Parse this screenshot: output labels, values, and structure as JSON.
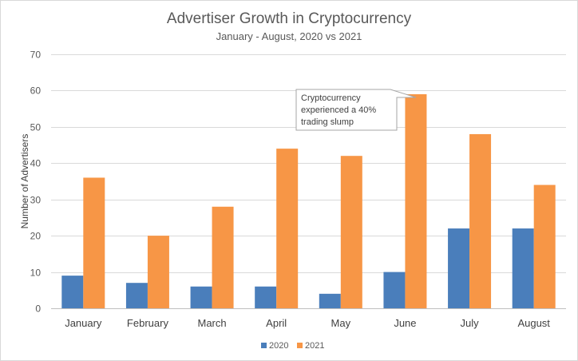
{
  "chart_data": {
    "type": "bar",
    "title": "Advertiser Growth in Cryptocurrency",
    "subtitle": "January - August, 2020 vs 2021",
    "xlabel": "",
    "ylabel": "Number  of Advertisers",
    "ylim": [
      0,
      70
    ],
    "yticks": [
      0,
      10,
      20,
      30,
      40,
      50,
      60,
      70
    ],
    "grid": true,
    "legend_position": "bottom",
    "categories": [
      "January",
      "February",
      "March",
      "April",
      "May",
      "June",
      "July",
      "August"
    ],
    "series": [
      {
        "name": "2020",
        "color": "#4a7ebb",
        "values": [
          9,
          7,
          6,
          6,
          4,
          10,
          22,
          22
        ]
      },
      {
        "name": "2021",
        "color": "#f79646",
        "values": [
          36,
          20,
          28,
          44,
          42,
          59,
          48,
          34
        ]
      }
    ],
    "annotation": {
      "lines": [
        "Cryptocurrency",
        "experienced a 40%",
        "trading slump"
      ],
      "target_category": "June",
      "target_series": "2021"
    }
  }
}
